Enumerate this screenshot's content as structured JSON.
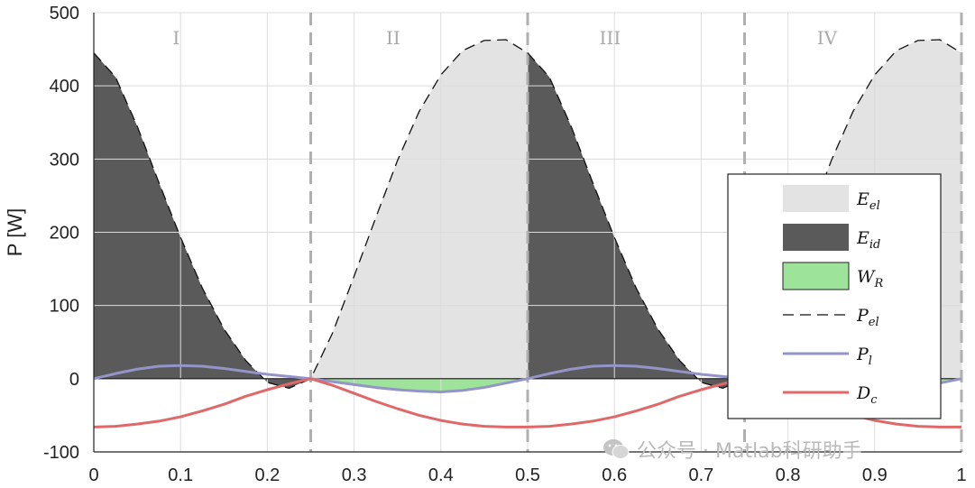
{
  "chart_data": {
    "type": "area",
    "ylabel": "P [W]",
    "xlim": [
      0,
      1
    ],
    "ylim": [
      -100,
      500
    ],
    "xticks": [
      "0",
      "0.1",
      "0.2",
      "0.3",
      "0.4",
      "0.5",
      "0.6",
      "0.7",
      "0.8",
      "0.9",
      "1"
    ],
    "yticks": [
      "-100",
      "0",
      "100",
      "200",
      "300",
      "400",
      "500"
    ],
    "grid": true,
    "legend_position": "right",
    "regions": [
      {
        "label": "I",
        "x_start": 0,
        "x_end": 0.25
      },
      {
        "label": "II",
        "x_start": 0.25,
        "x_end": 0.5
      },
      {
        "label": "III",
        "x_start": 0.5,
        "x_end": 0.75
      },
      {
        "label": "IV",
        "x_start": 0.75,
        "x_end": 1
      }
    ],
    "boundaries_x": [
      0.25,
      0.5,
      0.75,
      1.0
    ],
    "series": [
      {
        "name": "P_el",
        "style": "dashed-black",
        "color": "#111111",
        "x": [
          0,
          0.025,
          0.05,
          0.075,
          0.1,
          0.125,
          0.15,
          0.175,
          0.2,
          0.225,
          0.25,
          0.275,
          0.3,
          0.325,
          0.35,
          0.375,
          0.4,
          0.425,
          0.45,
          0.475,
          0.5,
          0.525,
          0.55,
          0.575,
          0.6,
          0.625,
          0.65,
          0.675,
          0.7,
          0.725,
          0.75,
          0.775,
          0.8,
          0.825,
          0.85,
          0.875,
          0.9,
          0.925,
          0.95,
          0.975,
          1.0
        ],
        "y": [
          445,
          412,
          345,
          268,
          193,
          124,
          68,
          25,
          -5,
          -13,
          0,
          62,
          140,
          220,
          298,
          365,
          415,
          448,
          462,
          463,
          445,
          412,
          345,
          268,
          193,
          124,
          68,
          25,
          -5,
          -13,
          0,
          62,
          140,
          220,
          298,
          365,
          415,
          448,
          462,
          463,
          445
        ]
      },
      {
        "name": "P_l",
        "style": "solid",
        "color": "#9494c8",
        "x": [
          0,
          0.025,
          0.05,
          0.075,
          0.1,
          0.125,
          0.15,
          0.175,
          0.2,
          0.225,
          0.25,
          0.275,
          0.3,
          0.325,
          0.35,
          0.375,
          0.4,
          0.425,
          0.45,
          0.475,
          0.5,
          0.525,
          0.55,
          0.575,
          0.6,
          0.625,
          0.65,
          0.675,
          0.7,
          0.725,
          0.75,
          0.775,
          0.8,
          0.825,
          0.85,
          0.875,
          0.9,
          0.925,
          0.95,
          0.975,
          1.0
        ],
        "y": [
          0,
          7,
          13,
          17,
          18,
          17,
          14,
          10,
          6,
          3,
          0,
          -4,
          -8,
          -12,
          -15,
          -17,
          -18,
          -16,
          -12,
          -6,
          0,
          7,
          13,
          17,
          18,
          17,
          14,
          10,
          6,
          3,
          0,
          -4,
          -8,
          -12,
          -15,
          -17,
          -18,
          -16,
          -12,
          -6,
          0
        ]
      },
      {
        "name": "D_c",
        "style": "solid",
        "color": "#e06868",
        "x": [
          0,
          0.025,
          0.05,
          0.075,
          0.1,
          0.125,
          0.15,
          0.175,
          0.2,
          0.225,
          0.25,
          0.275,
          0.3,
          0.325,
          0.35,
          0.375,
          0.4,
          0.425,
          0.45,
          0.475,
          0.5,
          0.525,
          0.55,
          0.575,
          0.6,
          0.625,
          0.65,
          0.675,
          0.7,
          0.725,
          0.75,
          0.775,
          0.8,
          0.825,
          0.85,
          0.875,
          0.9,
          0.925,
          0.95,
          0.975,
          1.0
        ],
        "y": [
          -66,
          -65,
          -62,
          -58,
          -52,
          -44,
          -35,
          -24,
          -15,
          -7,
          0,
          -9,
          -20,
          -31,
          -41,
          -50,
          -57,
          -62,
          -65,
          -66,
          -66,
          -65,
          -62,
          -58,
          -52,
          -44,
          -35,
          -24,
          -15,
          -7,
          0,
          -9,
          -20,
          -31,
          -41,
          -50,
          -57,
          -62,
          -65,
          -66,
          -66
        ]
      }
    ],
    "areas": [
      {
        "name": "E_el",
        "color": "#e3e3e3",
        "description_series": "P_el",
        "segments": [
          [
            0.25,
            0.5
          ],
          [
            0.75,
            1.0
          ]
        ]
      },
      {
        "name": "E_id",
        "color": "#5a5a5a",
        "description_series": "P_el",
        "segments": [
          [
            0.0,
            0.25
          ],
          [
            0.5,
            0.75
          ]
        ]
      },
      {
        "name": "W_R",
        "color": "#9ee39a",
        "description_series": "P_l",
        "segments": [
          [
            0.25,
            0.5
          ],
          [
            0.75,
            1.0
          ]
        ]
      }
    ],
    "legend": [
      {
        "main": "E",
        "sub": "el",
        "kind": "patch",
        "color": "#e3e3e3"
      },
      {
        "main": "E",
        "sub": "id",
        "kind": "patch",
        "color": "#5a5a5a"
      },
      {
        "main": "W",
        "sub": "R",
        "kind": "patch",
        "color": "#9ee39a"
      },
      {
        "main": "P",
        "sub": "el",
        "kind": "dashed",
        "color": "#111111"
      },
      {
        "main": "P",
        "sub": "l",
        "kind": "line",
        "color": "#9494c8"
      },
      {
        "main": "D",
        "sub": "c",
        "kind": "line",
        "color": "#e06868"
      }
    ]
  },
  "watermark": {
    "text": "公众号 · Matlab科研助手",
    "icon": "wechat-icon"
  }
}
